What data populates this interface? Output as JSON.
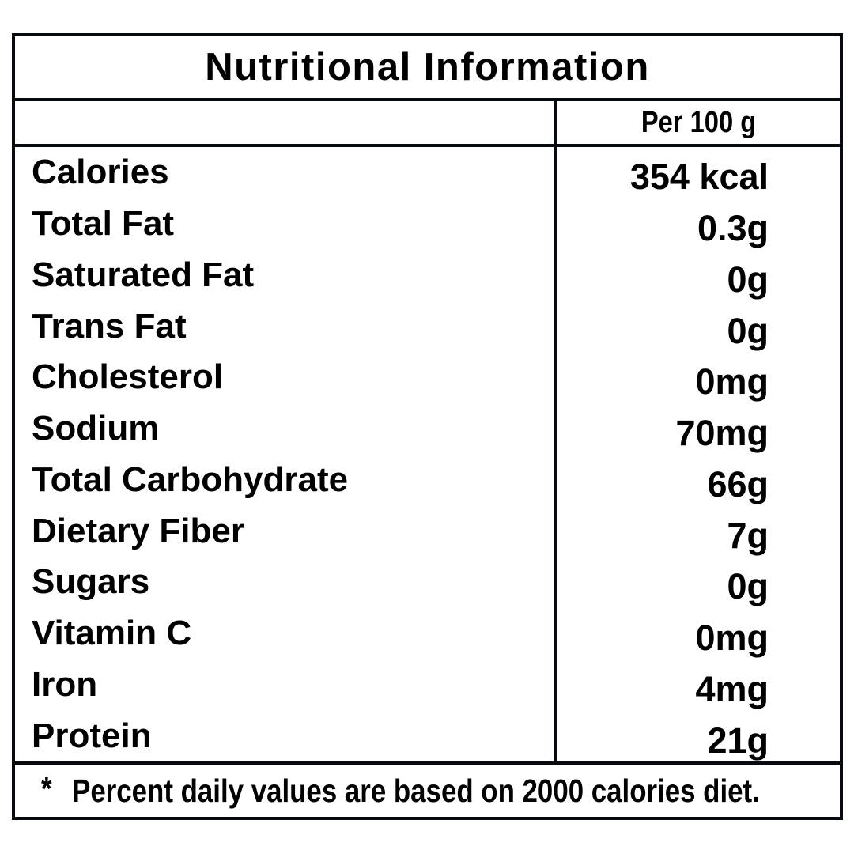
{
  "table": {
    "title": "Nutritional Information",
    "column_header": "Per 100 g",
    "rows": [
      {
        "label": "Calories",
        "value": "354 kcal"
      },
      {
        "label": "Total Fat",
        "value": "0.3g"
      },
      {
        "label": "Saturated Fat",
        "value": "0g"
      },
      {
        "label": "Trans Fat",
        "value": "0g"
      },
      {
        "label": "Cholesterol",
        "value": "0mg"
      },
      {
        "label": "Sodium",
        "value": "70mg"
      },
      {
        "label": "Total Carbohydrate",
        "value": "66g"
      },
      {
        "label": "Dietary Fiber",
        "value": "7g"
      },
      {
        "label": "Sugars",
        "value": "0g"
      },
      {
        "label": "Vitamin C",
        "value": "0mg"
      },
      {
        "label": "Iron",
        "value": "4mg"
      },
      {
        "label": "Protein",
        "value": "21g"
      }
    ],
    "footnote_marker": "*",
    "footnote": "Percent daily values are based on 2000 calories diet.",
    "colors": {
      "border": "#070a0e",
      "text": "#000000",
      "background": "#ffffff"
    }
  }
}
